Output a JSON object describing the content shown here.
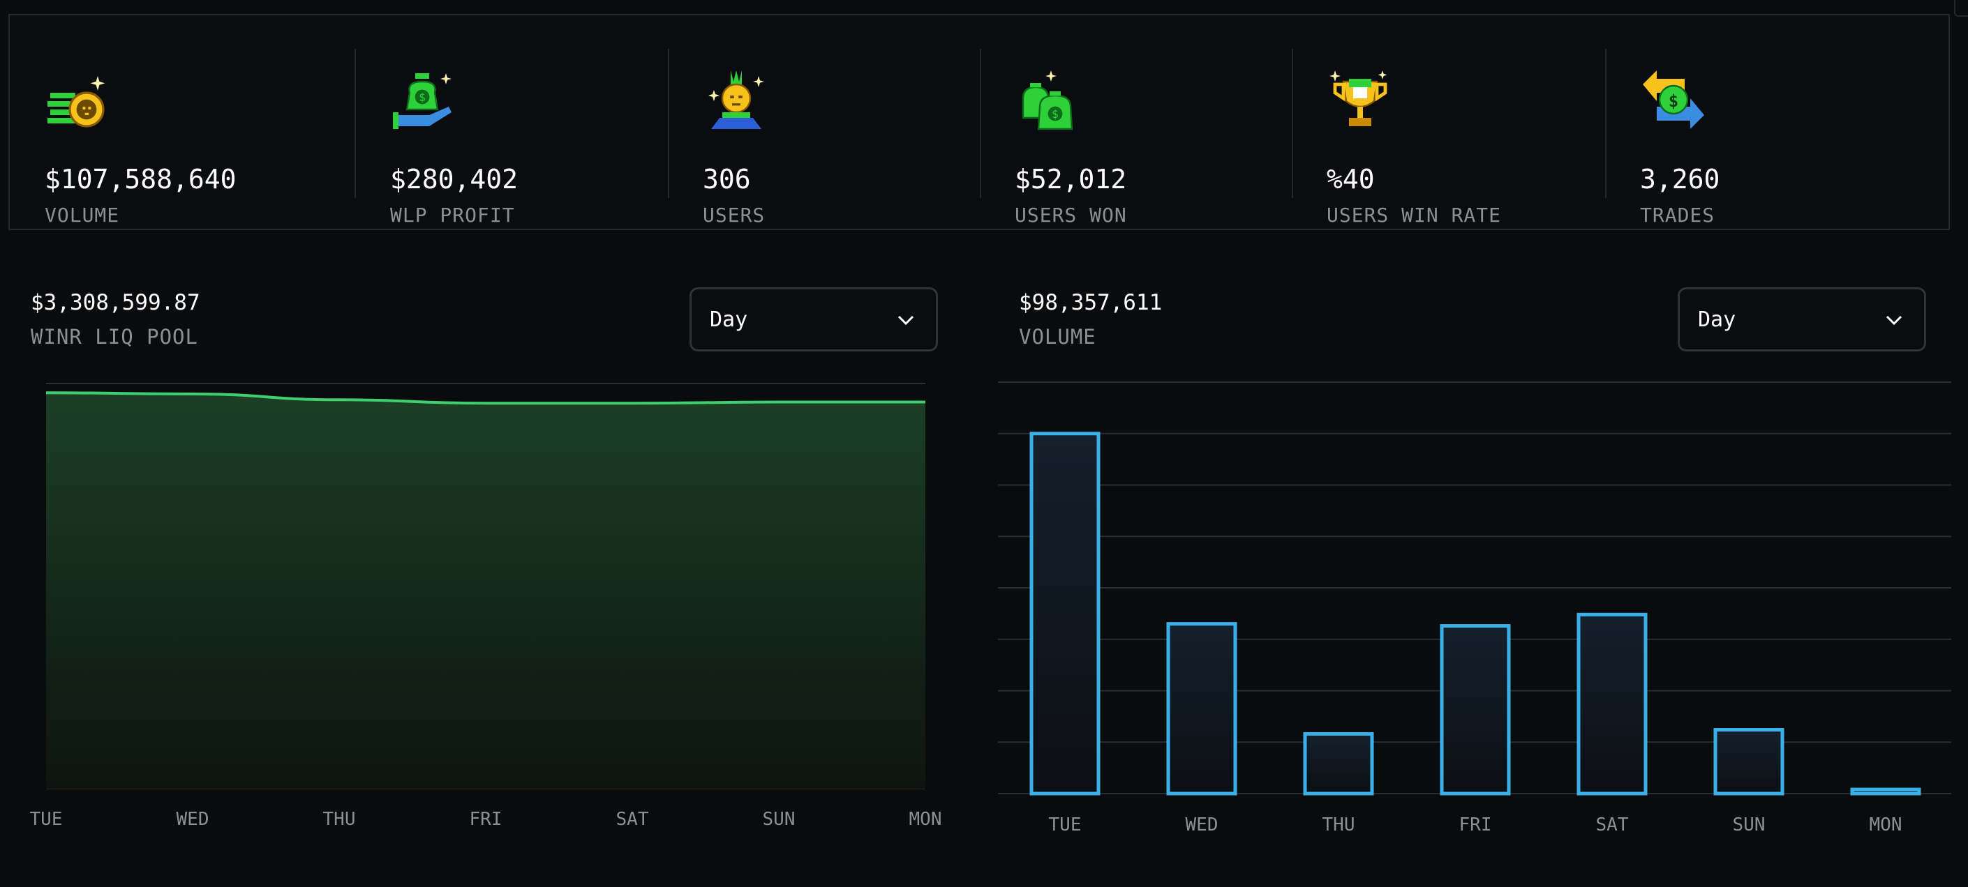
{
  "stats": [
    {
      "value": "$107,588,640",
      "label": "VOLUME",
      "icon": "coin-stack-skull-icon"
    },
    {
      "value": "$280,402",
      "label": "WLP PROFIT",
      "icon": "money-bag-hand-icon"
    },
    {
      "value": "306",
      "label": "USERS",
      "icon": "pineapple-character-icon"
    },
    {
      "value": "$52,012",
      "label": "USERS WON",
      "icon": "money-bags-icon"
    },
    {
      "value": "%40",
      "label": "USERS WIN RATE",
      "icon": "trophy-icon"
    },
    {
      "value": "3,260",
      "label": "TRADES",
      "icon": "exchange-arrows-icon"
    }
  ],
  "liq_pool": {
    "value": "$3,308,599.87",
    "label": "WINR LIQ POOL",
    "dropdown": "Day"
  },
  "volume": {
    "value": "$98,357,611",
    "label": "VOLUME",
    "dropdown": "Day"
  },
  "colors": {
    "line": "#3ecf6f",
    "area": "#1a3a22",
    "bar": "#3ab0e8",
    "grid": "#2a2d31",
    "muted": "#8c8f94"
  },
  "chart_data": [
    {
      "type": "area",
      "title": "WINR LIQ POOL",
      "categories": [
        "TUE",
        "WED",
        "THU",
        "FRI",
        "SAT",
        "SUN",
        "MON"
      ],
      "values": [
        3.42,
        3.41,
        3.36,
        3.33,
        3.33,
        3.34,
        3.34
      ],
      "ylim": [
        0,
        3.5
      ],
      "grid": true
    },
    {
      "type": "bar",
      "title": "VOLUME",
      "categories": [
        "TUE",
        "WED",
        "THU",
        "FRI",
        "SAT",
        "SUN",
        "MON"
      ],
      "values": [
        35,
        16.5,
        5.8,
        16.3,
        17.4,
        6.2,
        0.4
      ],
      "ylim": [
        0,
        40
      ],
      "grid": true
    }
  ]
}
